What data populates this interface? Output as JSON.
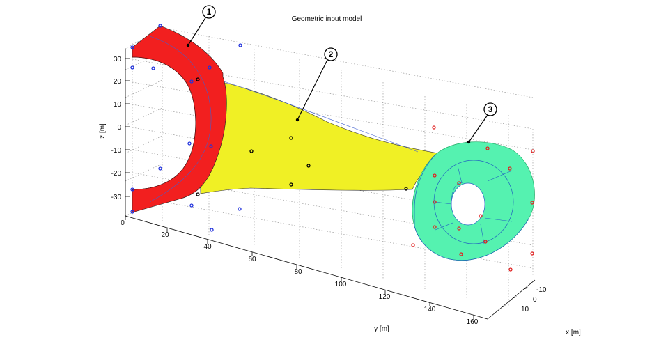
{
  "title": "Geometric input model",
  "axes": {
    "z_label": "z [m]",
    "y_label": "y [m]",
    "x_label": "x [m]",
    "z_ticks": [
      "30",
      "20",
      "10",
      "0",
      "-10",
      "-20",
      "-30"
    ],
    "y_ticks": [
      "0",
      "20",
      "40",
      "60",
      "80",
      "100",
      "120",
      "140",
      "160"
    ],
    "x_ticks": [
      "-10",
      "0",
      "10"
    ]
  },
  "callouts": [
    {
      "number": "1",
      "part": "red-end"
    },
    {
      "number": "2",
      "part": "yellow-shank"
    },
    {
      "number": "3",
      "part": "green-ring"
    }
  ],
  "colors": {
    "part1": "#f21f1f",
    "part2": "#f0f025",
    "part3": "#55f2b0",
    "control_points_blue": "#2233dd",
    "control_points_black": "#000000",
    "control_points_red": "#e02020"
  }
}
